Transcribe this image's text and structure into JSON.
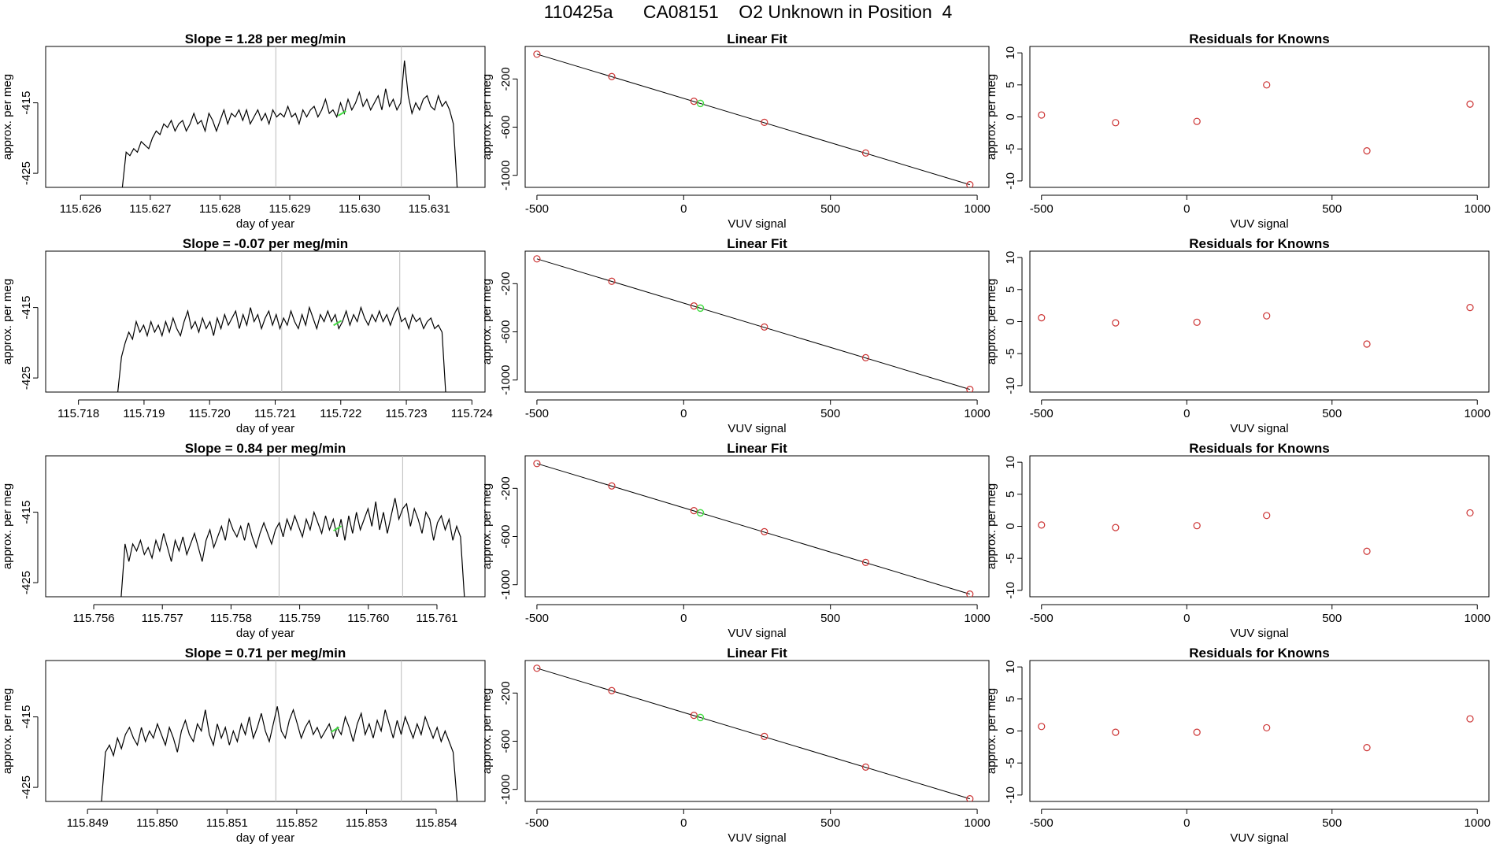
{
  "title": "110425a      CA08151    O2 Unknown in Position  4",
  "colors": {
    "trace": "#000000",
    "vline": "#bbbbbb",
    "known": "#cc3333",
    "unknown": "#44dd44",
    "frame": "#000000"
  },
  "chart_data": [
    {
      "type": "line",
      "title": "Slope =  1.28  per meg/min",
      "xlabel": "day of year",
      "ylabel": "approx. per meg",
      "xlim": [
        115.6255,
        115.6318
      ],
      "ylim": [
        -427,
        -407
      ],
      "xticks": [
        "115.626",
        "115.627",
        "115.628",
        "115.629",
        "115.630",
        "115.631"
      ],
      "xtick_values": [
        115.626,
        115.627,
        115.628,
        115.629,
        115.63,
        115.631
      ],
      "yticks": [
        "-425",
        "-415"
      ],
      "ytick_values": [
        -425,
        -415
      ],
      "vlines": [
        115.6288,
        115.6306
      ],
      "trace_x": [
        115.6266,
        115.6314
      ],
      "trace_y": [
        -427,
        -422,
        -422.5,
        -421.5,
        -422,
        -420.5,
        -421,
        -421.5,
        -420,
        -419,
        -419.5,
        -418,
        -418.5,
        -417.5,
        -419,
        -418,
        -417.5,
        -419,
        -418,
        -416.5,
        -418,
        -417.5,
        -419,
        -416.5,
        -417.5,
        -419,
        -417.5,
        -416,
        -418,
        -416.5,
        -417,
        -416,
        -417.5,
        -416,
        -418,
        -417,
        -416,
        -417.5,
        -416.5,
        -418,
        -416,
        -417,
        -416.5,
        -417,
        -415.5,
        -417,
        -416.5,
        -418,
        -416,
        -417,
        -416,
        -415.5,
        -417,
        -416,
        -414.5,
        -416.5,
        -416,
        -417,
        -415,
        -416.5,
        -414.5,
        -416,
        -415,
        -413.5,
        -415.5,
        -414.5,
        -416,
        -415,
        -414,
        -416,
        -413,
        -415.5,
        -414.5,
        -416,
        -415,
        -409,
        -414,
        -416.5,
        -415,
        -416,
        -414.5,
        -414,
        -415.5,
        -416,
        -414,
        -415.5,
        -414.8,
        -416,
        -418,
        -427
      ],
      "marker": [
        115.62975,
        -416.5
      ]
    },
    {
      "type": "scatter",
      "title": "Linear Fit",
      "xlabel": "VUV signal",
      "ylabel": "approx. per meg",
      "xlim": [
        -540,
        1040
      ],
      "ylim": [
        -1100,
        70
      ],
      "xticks": [
        "-500",
        "0",
        "500",
        "1000"
      ],
      "xtick_values": [
        -500,
        0,
        500,
        1000
      ],
      "yticks": [
        "-200",
        "-600",
        "-1000"
      ],
      "ytick_values": [
        -200,
        -600,
        -1000
      ],
      "fit_line": [
        [
          -500,
          6
        ],
        [
          975,
          -1078
        ]
      ],
      "knowns": [
        [
          -500,
          6
        ],
        [
          -245,
          -180
        ],
        [
          35,
          -385
        ],
        [
          275,
          -560
        ],
        [
          620,
          -815
        ],
        [
          975,
          -1078
        ]
      ],
      "unknown": [
        57,
        -403
      ]
    },
    {
      "type": "scatter",
      "title": "Residuals for Knowns",
      "xlabel": "VUV signal",
      "ylabel": "approx. per meg",
      "xlim": [
        -540,
        1040
      ],
      "ylim": [
        -11,
        11
      ],
      "xticks": [
        "-500",
        "0",
        "500",
        "1000"
      ],
      "xtick_values": [
        -500,
        0,
        500,
        1000
      ],
      "yticks": [
        "-10",
        "-5",
        "0",
        "5",
        "10"
      ],
      "ytick_values": [
        -10,
        -5,
        0,
        5,
        10
      ],
      "points": [
        [
          -500,
          0.3
        ],
        [
          -245,
          -0.9
        ],
        [
          35,
          -0.7
        ],
        [
          275,
          5.0
        ],
        [
          620,
          -5.3
        ],
        [
          975,
          2.0
        ]
      ]
    },
    {
      "type": "line",
      "title": "Slope =  -0.07  per meg/min",
      "xlabel": "day of year",
      "ylabel": "approx. per meg",
      "xlim": [
        115.7175,
        115.7242
      ],
      "ylim": [
        -427,
        -407
      ],
      "xticks": [
        "115.718",
        "115.719",
        "115.720",
        "115.721",
        "115.722",
        "115.723",
        "115.724"
      ],
      "xtick_values": [
        115.718,
        115.719,
        115.72,
        115.721,
        115.722,
        115.723,
        115.724
      ],
      "yticks": [
        "-425",
        "-415"
      ],
      "ytick_values": [
        -425,
        -415
      ],
      "vlines": [
        115.7211,
        115.7229
      ],
      "trace_x": [
        115.7186,
        115.7236
      ],
      "trace_y": [
        -427,
        -422,
        -420,
        -418.5,
        -419.5,
        -417,
        -418.5,
        -417.5,
        -419,
        -417,
        -418.5,
        -417.5,
        -419,
        -417,
        -418.5,
        -416.5,
        -418,
        -419,
        -417,
        -415.5,
        -418,
        -417,
        -418.5,
        -416.5,
        -418,
        -417,
        -419,
        -416.5,
        -418,
        -416,
        -417.5,
        -416.5,
        -415.5,
        -418,
        -416,
        -417.5,
        -415,
        -417,
        -416,
        -418,
        -416.5,
        -415.5,
        -417.5,
        -416,
        -418,
        -416.5,
        -417.5,
        -415.5,
        -417,
        -418,
        -416,
        -417.5,
        -415,
        -416.5,
        -418,
        -416,
        -417,
        -415.5,
        -417,
        -416,
        -418,
        -417,
        -415.5,
        -417.5,
        -416,
        -417,
        -415,
        -416.5,
        -417.5,
        -416,
        -417,
        -415.5,
        -417,
        -416,
        -417.5,
        -416,
        -415,
        -417,
        -416.5,
        -418,
        -416,
        -417,
        -416.5,
        -418,
        -417,
        -416.5,
        -418,
        -417.5,
        -418.5,
        -427
      ],
      "marker": [
        115.72195,
        -417.2
      ]
    },
    {
      "type": "scatter",
      "title": "Linear Fit",
      "xlabel": "VUV signal",
      "ylabel": "approx. per meg",
      "xlim": [
        -540,
        1040
      ],
      "ylim": [
        -1100,
        70
      ],
      "xticks": [
        "-500",
        "0",
        "500",
        "1000"
      ],
      "xtick_values": [
        -500,
        0,
        500,
        1000
      ],
      "yticks": [
        "-200",
        "-600",
        "-1000"
      ],
      "ytick_values": [
        -200,
        -600,
        -1000
      ],
      "fit_line": [
        [
          -500,
          6
        ],
        [
          975,
          -1078
        ]
      ],
      "knowns": [
        [
          -500,
          6
        ],
        [
          -245,
          -180
        ],
        [
          35,
          -385
        ],
        [
          275,
          -560
        ],
        [
          620,
          -815
        ],
        [
          975,
          -1078
        ]
      ],
      "unknown": [
        57,
        -403
      ]
    },
    {
      "type": "scatter",
      "title": "Residuals for Knowns",
      "xlabel": "VUV signal",
      "ylabel": "approx. per meg",
      "xlim": [
        -540,
        1040
      ],
      "ylim": [
        -11,
        11
      ],
      "xticks": [
        "-500",
        "0",
        "500",
        "1000"
      ],
      "xtick_values": [
        -500,
        0,
        500,
        1000
      ],
      "yticks": [
        "-10",
        "-5",
        "0",
        "5",
        "10"
      ],
      "ytick_values": [
        -10,
        -5,
        0,
        5,
        10
      ],
      "points": [
        [
          -500,
          0.6
        ],
        [
          -245,
          -0.2
        ],
        [
          35,
          -0.1
        ],
        [
          275,
          0.9
        ],
        [
          620,
          -3.5
        ],
        [
          975,
          2.2
        ]
      ]
    },
    {
      "type": "line",
      "title": "Slope =  0.84  per meg/min",
      "xlabel": "day of year",
      "ylabel": "approx. per meg",
      "xlim": [
        115.7553,
        115.7617
      ],
      "ylim": [
        -427,
        -407
      ],
      "xticks": [
        "115.756",
        "115.757",
        "115.758",
        "115.759",
        "115.760",
        "115.761"
      ],
      "xtick_values": [
        115.756,
        115.757,
        115.758,
        115.759,
        115.76,
        115.761
      ],
      "yticks": [
        "-425",
        "-415"
      ],
      "ytick_values": [
        -425,
        -415
      ],
      "vlines": [
        115.7587,
        115.7605
      ],
      "trace_x": [
        115.7564,
        115.7614
      ],
      "trace_y": [
        -427,
        -419.5,
        -422,
        -419.5,
        -420.5,
        -419,
        -421,
        -420,
        -421.5,
        -419,
        -420.5,
        -418,
        -420,
        -422,
        -419,
        -420.5,
        -418.5,
        -421,
        -419.5,
        -418,
        -420,
        -422,
        -419,
        -417.5,
        -420,
        -418.5,
        -417,
        -419,
        -416,
        -417.5,
        -418.5,
        -417,
        -419,
        -416.5,
        -418.5,
        -420,
        -418,
        -416.5,
        -418,
        -419.5,
        -417.5,
        -416.5,
        -418.5,
        -416,
        -417.5,
        -415.5,
        -417,
        -418.5,
        -416,
        -417.5,
        -415,
        -416.5,
        -418,
        -415.5,
        -417.5,
        -416,
        -418.5,
        -416,
        -419,
        -415.5,
        -418,
        -415,
        -417.5,
        -416,
        -414.5,
        -417,
        -413.5,
        -417.5,
        -415,
        -418,
        -415.5,
        -413,
        -416,
        -414.5,
        -413.8,
        -417,
        -414.5,
        -416,
        -418,
        -415,
        -416,
        -419,
        -416.5,
        -415.5,
        -417.5,
        -416,
        -419,
        -417,
        -418.5,
        -427
      ],
      "marker": [
        115.75955,
        -417.3
      ]
    },
    {
      "type": "scatter",
      "title": "Linear Fit",
      "xlabel": "VUV signal",
      "ylabel": "approx. per meg",
      "xlim": [
        -540,
        1040
      ],
      "ylim": [
        -1100,
        70
      ],
      "xticks": [
        "-500",
        "0",
        "500",
        "1000"
      ],
      "xtick_values": [
        -500,
        0,
        500,
        1000
      ],
      "yticks": [
        "-200",
        "-600",
        "-1000"
      ],
      "ytick_values": [
        -200,
        -600,
        -1000
      ],
      "fit_line": [
        [
          -500,
          6
        ],
        [
          975,
          -1078
        ]
      ],
      "knowns": [
        [
          -500,
          6
        ],
        [
          -245,
          -180
        ],
        [
          35,
          -385
        ],
        [
          275,
          -560
        ],
        [
          620,
          -815
        ],
        [
          975,
          -1078
        ]
      ],
      "unknown": [
        57,
        -403
      ]
    },
    {
      "type": "scatter",
      "title": "Residuals for Knowns",
      "xlabel": "VUV signal",
      "ylabel": "approx. per meg",
      "xlim": [
        -540,
        1040
      ],
      "ylim": [
        -11,
        11
      ],
      "xticks": [
        "-500",
        "0",
        "500",
        "1000"
      ],
      "xtick_values": [
        -500,
        0,
        500,
        1000
      ],
      "yticks": [
        "-10",
        "-5",
        "0",
        "5",
        "10"
      ],
      "ytick_values": [
        -10,
        -5,
        0,
        5,
        10
      ],
      "points": [
        [
          -500,
          0.2
        ],
        [
          -245,
          -0.2
        ],
        [
          35,
          0.1
        ],
        [
          275,
          1.7
        ],
        [
          620,
          -3.9
        ],
        [
          975,
          2.1
        ]
      ]
    },
    {
      "type": "line",
      "title": "Slope =  0.71  per meg/min",
      "xlabel": "day of year",
      "ylabel": "approx. per meg",
      "xlim": [
        115.8484,
        115.8547
      ],
      "ylim": [
        -427,
        -407
      ],
      "xticks": [
        "115.849",
        "115.850",
        "115.851",
        "115.852",
        "115.853",
        "115.854"
      ],
      "xtick_values": [
        115.849,
        115.85,
        115.851,
        115.852,
        115.853,
        115.854
      ],
      "yticks": [
        "-425",
        "-415"
      ],
      "ytick_values": [
        -425,
        -415
      ],
      "vlines": [
        115.8517,
        115.8535
      ],
      "trace_x": [
        115.8492,
        115.8543
      ],
      "trace_y": [
        -427,
        -420,
        -419,
        -420.5,
        -418,
        -419.5,
        -417.5,
        -416.5,
        -418,
        -419,
        -416.5,
        -418.5,
        -417,
        -418,
        -416,
        -417.5,
        -419,
        -416.5,
        -418,
        -420,
        -417,
        -415.5,
        -417.5,
        -418.5,
        -416,
        -417,
        -414,
        -417.5,
        -419,
        -416,
        -418,
        -416.5,
        -419,
        -417,
        -418.5,
        -416,
        -417.5,
        -415,
        -418,
        -416.5,
        -414.5,
        -417,
        -418.5,
        -416,
        -413.5,
        -417,
        -418,
        -415.5,
        -414,
        -416,
        -418,
        -416.5,
        -415.5,
        -417.5,
        -416.5,
        -418,
        -417,
        -416,
        -418,
        -416.5,
        -417.5,
        -415,
        -416.5,
        -418.5,
        -416,
        -414.5,
        -417.5,
        -416,
        -418,
        -415.5,
        -417,
        -414,
        -416,
        -418,
        -415.5,
        -417.5,
        -415,
        -416.5,
        -418,
        -416,
        -417.5,
        -415,
        -416.5,
        -418,
        -416.5,
        -418.5,
        -417,
        -418.5,
        -420,
        -427
      ],
      "marker": [
        115.85255,
        -416.8
      ]
    },
    {
      "type": "scatter",
      "title": "Linear Fit",
      "xlabel": "VUV signal",
      "ylabel": "approx. per meg",
      "xlim": [
        -540,
        1040
      ],
      "ylim": [
        -1100,
        70
      ],
      "xticks": [
        "-500",
        "0",
        "500",
        "1000"
      ],
      "xtick_values": [
        -500,
        0,
        500,
        1000
      ],
      "yticks": [
        "-200",
        "-600",
        "-1000"
      ],
      "ytick_values": [
        -200,
        -600,
        -1000
      ],
      "fit_line": [
        [
          -500,
          6
        ],
        [
          975,
          -1078
        ]
      ],
      "knowns": [
        [
          -500,
          6
        ],
        [
          -245,
          -180
        ],
        [
          35,
          -385
        ],
        [
          275,
          -560
        ],
        [
          620,
          -815
        ],
        [
          975,
          -1078
        ]
      ],
      "unknown": [
        57,
        -403
      ]
    },
    {
      "type": "scatter",
      "title": "Residuals for Knowns",
      "xlabel": "VUV signal",
      "ylabel": "approx. per meg",
      "xlim": [
        -540,
        1040
      ],
      "ylim": [
        -11,
        11
      ],
      "xticks": [
        "-500",
        "0",
        "500",
        "1000"
      ],
      "xtick_values": [
        -500,
        0,
        500,
        1000
      ],
      "yticks": [
        "-10",
        "-5",
        "0",
        "5",
        "10"
      ],
      "ytick_values": [
        -10,
        -5,
        0,
        5,
        10
      ],
      "points": [
        [
          -500,
          0.7
        ],
        [
          -245,
          -0.2
        ],
        [
          35,
          -0.2
        ],
        [
          275,
          0.5
        ],
        [
          620,
          -2.6
        ],
        [
          975,
          1.9
        ]
      ]
    }
  ]
}
